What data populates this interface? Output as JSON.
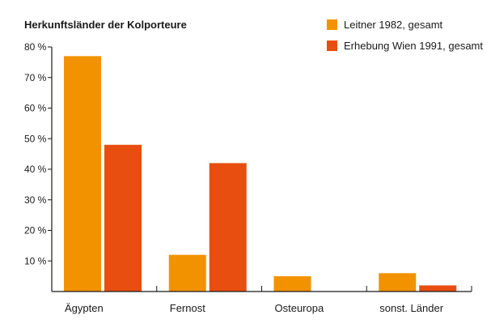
{
  "chart_data": {
    "type": "bar",
    "title": "Herkunftsländer der Kolporteure",
    "categories": [
      "Ägypten",
      "Fernost",
      "Osteuropa",
      "sonst. Länder"
    ],
    "series": [
      {
        "name": "Leitner 1982, gesamt",
        "color": "#f39200",
        "values": [
          77,
          12,
          5,
          6
        ]
      },
      {
        "name": "Erhebung Wien 1991, gesamt",
        "color": "#e84e0f",
        "values": [
          48,
          42,
          0,
          2
        ]
      }
    ],
    "ylim": [
      0,
      80
    ],
    "yticks": [
      {
        "value": 10,
        "label": "10 %"
      },
      {
        "value": 20,
        "label": "20 %"
      },
      {
        "value": 30,
        "label": "30 %"
      },
      {
        "value": 40,
        "label": "40 %"
      },
      {
        "value": 50,
        "label": "50 %"
      },
      {
        "value": 60,
        "label": "60 %"
      },
      {
        "value": 70,
        "label": "70 %"
      },
      {
        "value": 80,
        "label": "80 %"
      }
    ],
    "legend_position": "top-right",
    "grid": false
  }
}
